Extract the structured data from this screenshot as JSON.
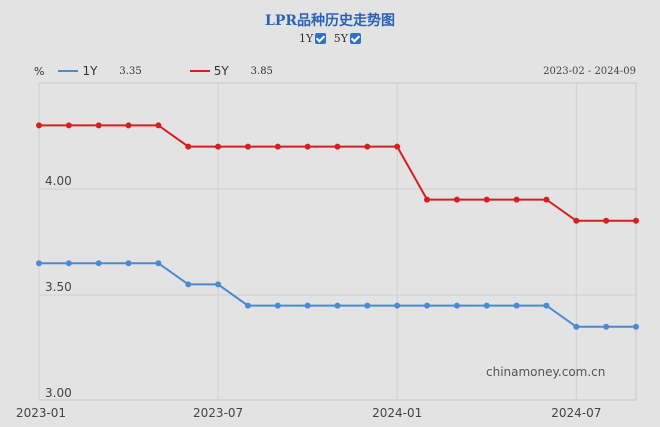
{
  "header": {
    "title": "LPR品种历史走势图",
    "toggles": [
      {
        "label": "1Y",
        "checked": true
      },
      {
        "label": "5Y",
        "checked": true
      }
    ]
  },
  "legend": {
    "unit": "%",
    "items": [
      {
        "name": "1Y",
        "latest": "3.35",
        "color": "#4a8ad6"
      },
      {
        "name": "5Y",
        "latest": "3.85",
        "color": "#d62020"
      }
    ],
    "date_range": "2023-02 - 2024-09"
  },
  "watermark": "chinamoney.com.cn",
  "chart_data": {
    "type": "line",
    "title": "LPR品种历史走势图",
    "xlabel": "",
    "ylabel": "%",
    "x": [
      "2023-01",
      "2023-02",
      "2023-03",
      "2023-04",
      "2023-05",
      "2023-06",
      "2023-07",
      "2023-08",
      "2023-09",
      "2023-10",
      "2023-11",
      "2023-12",
      "2024-01",
      "2024-02",
      "2024-03",
      "2024-04",
      "2024-05",
      "2024-06",
      "2024-07",
      "2024-08",
      "2024-09"
    ],
    "x_ticks": [
      "2023-01",
      "2023-07",
      "2024-01",
      "2024-07"
    ],
    "y_ticks": [
      "3.00",
      "3.50",
      "4.00"
    ],
    "ylim": [
      3.0,
      4.5
    ],
    "grid": true,
    "legend_position": "top-left",
    "series": [
      {
        "name": "1Y",
        "color": "#4a8ad6",
        "values": [
          3.65,
          3.65,
          3.65,
          3.65,
          3.65,
          3.55,
          3.55,
          3.45,
          3.45,
          3.45,
          3.45,
          3.45,
          3.45,
          3.45,
          3.45,
          3.45,
          3.45,
          3.45,
          3.35,
          3.35,
          3.35
        ]
      },
      {
        "name": "5Y",
        "color": "#d62020",
        "values": [
          4.3,
          4.3,
          4.3,
          4.3,
          4.3,
          4.2,
          4.2,
          4.2,
          4.2,
          4.2,
          4.2,
          4.2,
          4.2,
          3.95,
          3.95,
          3.95,
          3.95,
          3.95,
          3.85,
          3.85,
          3.85
        ]
      }
    ]
  }
}
